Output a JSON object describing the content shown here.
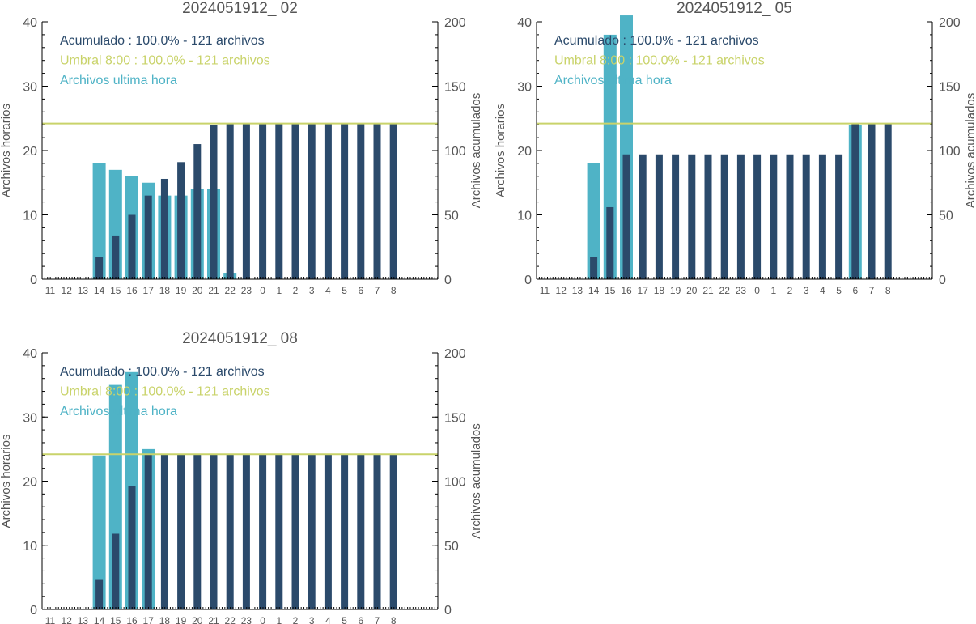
{
  "colors": {
    "accumulated": "#2b4a6b",
    "hourly": "#4fb3c6",
    "threshold": "#c9d36a",
    "text": "#555555"
  },
  "chart_data": [
    {
      "type": "bar",
      "title": "2024051912_ 02",
      "ylabel_left": "Archivos horarios",
      "ylabel_right": "Archivos acumulados",
      "ylim_left": [
        0,
        40
      ],
      "ylim_right": [
        0,
        200
      ],
      "left_ticks": [
        "0",
        "10",
        "20",
        "30",
        "40"
      ],
      "right_ticks": [
        "0",
        "50",
        "100",
        "150",
        "200"
      ],
      "categories": [
        "11",
        "12",
        "13",
        "14",
        "15",
        "16",
        "17",
        "18",
        "19",
        "20",
        "21",
        "22",
        "23",
        "0",
        "1",
        "2",
        "3",
        "4",
        "5",
        "6",
        "7",
        "8"
      ],
      "legend": [
        "Acumulado : 100.0% - 121 archivos",
        "Umbral 8:00 : 100.0% - 121 archivos",
        "Archivos ultima hora"
      ],
      "threshold": 121,
      "series": [
        {
          "name": "Archivos ultima hora",
          "axis": "left",
          "values": [
            0,
            0,
            0,
            18,
            17,
            16,
            15,
            13,
            13,
            14,
            14,
            1,
            0,
            0,
            0,
            0,
            0,
            0,
            0,
            0,
            0,
            0
          ]
        },
        {
          "name": "Acumulado",
          "axis": "right",
          "values": [
            0,
            0,
            0,
            17,
            34,
            50,
            65,
            78,
            91,
            105,
            120,
            121,
            121,
            121,
            121,
            121,
            121,
            121,
            121,
            121,
            121,
            121
          ]
        }
      ]
    },
    {
      "type": "bar",
      "title": "2024051912_ 05",
      "ylabel_left": "Archivos horarios",
      "ylabel_right": "Archivos acumulados",
      "ylim_left": [
        0,
        40
      ],
      "ylim_right": [
        0,
        200
      ],
      "left_ticks": [
        "0",
        "10",
        "20",
        "30",
        "40"
      ],
      "right_ticks": [
        "0",
        "50",
        "100",
        "150",
        "200"
      ],
      "categories": [
        "11",
        "12",
        "13",
        "14",
        "15",
        "16",
        "17",
        "18",
        "19",
        "20",
        "21",
        "22",
        "23",
        "0",
        "1",
        "2",
        "3",
        "4",
        "5",
        "6",
        "7",
        "8"
      ],
      "legend": [
        "Acumulado : 100.0% - 121 archivos",
        "Umbral 8:00 : 100.0% - 121 archivos",
        "Archivos ultima hora"
      ],
      "threshold": 121,
      "series": [
        {
          "name": "Archivos ultima hora",
          "axis": "left",
          "values": [
            0,
            0,
            0,
            18,
            38,
            41,
            0,
            0,
            0,
            0,
            0,
            0,
            0,
            0,
            0,
            0,
            0,
            0,
            0,
            24,
            0,
            0
          ]
        },
        {
          "name": "Acumulado",
          "axis": "right",
          "values": [
            0,
            0,
            0,
            17,
            56,
            97,
            97,
            97,
            97,
            97,
            97,
            97,
            97,
            97,
            97,
            97,
            97,
            97,
            97,
            121,
            121,
            121
          ]
        }
      ]
    },
    {
      "type": "bar",
      "title": "2024051912_ 08",
      "ylabel_left": "Archivos horarios",
      "ylabel_right": "Archivos acumulados",
      "ylim_left": [
        0,
        40
      ],
      "ylim_right": [
        0,
        200
      ],
      "left_ticks": [
        "0",
        "10",
        "20",
        "30",
        "40"
      ],
      "right_ticks": [
        "0",
        "50",
        "100",
        "150",
        "200"
      ],
      "categories": [
        "11",
        "12",
        "13",
        "14",
        "15",
        "16",
        "17",
        "18",
        "19",
        "20",
        "21",
        "22",
        "23",
        "0",
        "1",
        "2",
        "3",
        "4",
        "5",
        "6",
        "7",
        "8"
      ],
      "legend": [
        "Acumulado : 100.0% - 121 archivos",
        "Umbral 8:00 : 100.0% - 121 archivos",
        "Archivos ultima hora"
      ],
      "threshold": 121,
      "series": [
        {
          "name": "Archivos ultima hora",
          "axis": "left",
          "values": [
            0,
            0,
            0,
            24,
            35,
            37,
            25,
            0,
            0,
            0,
            0,
            0,
            0,
            0,
            0,
            0,
            0,
            0,
            0,
            0,
            0,
            0
          ]
        },
        {
          "name": "Acumulado",
          "axis": "right",
          "values": [
            0,
            0,
            0,
            23,
            59,
            96,
            121,
            121,
            121,
            121,
            121,
            121,
            121,
            121,
            121,
            121,
            121,
            121,
            121,
            121,
            121,
            121
          ]
        }
      ]
    }
  ]
}
